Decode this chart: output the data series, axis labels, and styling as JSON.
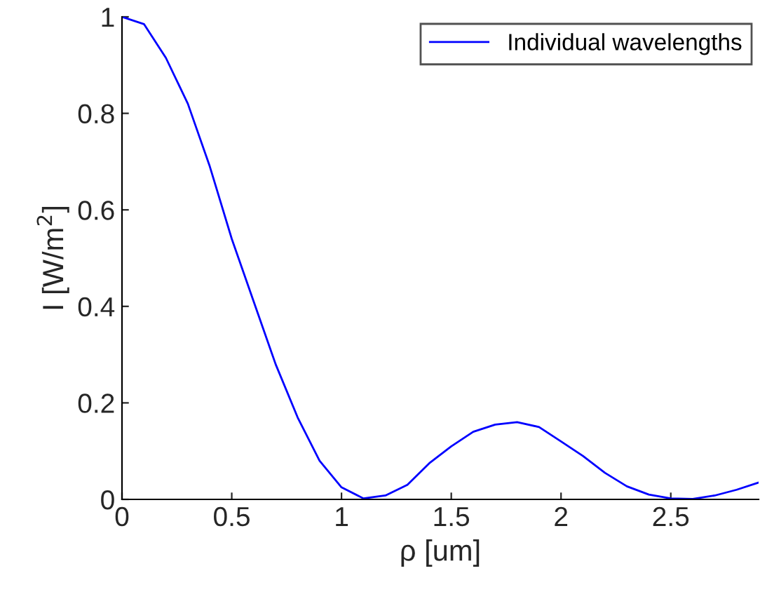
{
  "chart_data": {
    "type": "line",
    "xlabel": "ρ [um]",
    "ylabel": "I [W/m$^{2}$]",
    "x": [
      0,
      0.1,
      0.2,
      0.3,
      0.4,
      0.5,
      0.6,
      0.7,
      0.8,
      0.9,
      1.0,
      1.1,
      1.2,
      1.3,
      1.4,
      1.5,
      1.6,
      1.7,
      1.8,
      1.9,
      2.0,
      2.1,
      2.2,
      2.3,
      2.4,
      2.5,
      2.6,
      2.7,
      2.8,
      2.9
    ],
    "series": [
      {
        "name": "Individual wavelengths",
        "color": "#0000ff",
        "values": [
          1.0,
          0.985,
          0.915,
          0.82,
          0.69,
          0.54,
          0.41,
          0.28,
          0.17,
          0.08,
          0.025,
          0.002,
          0.008,
          0.03,
          0.075,
          0.11,
          0.14,
          0.155,
          0.16,
          0.15,
          0.12,
          0.09,
          0.055,
          0.027,
          0.01,
          0.002,
          0.001,
          0.008,
          0.02,
          0.035
        ]
      }
    ],
    "xlim": [
      0,
      2.9
    ],
    "ylim": [
      0,
      1
    ],
    "xticks": [
      0,
      0.5,
      1,
      1.5,
      2,
      2.5
    ],
    "yticks": [
      0,
      0.2,
      0.4,
      0.6,
      0.8,
      1
    ],
    "legend": "top right",
    "grid": false,
    "line_style": "solid"
  }
}
